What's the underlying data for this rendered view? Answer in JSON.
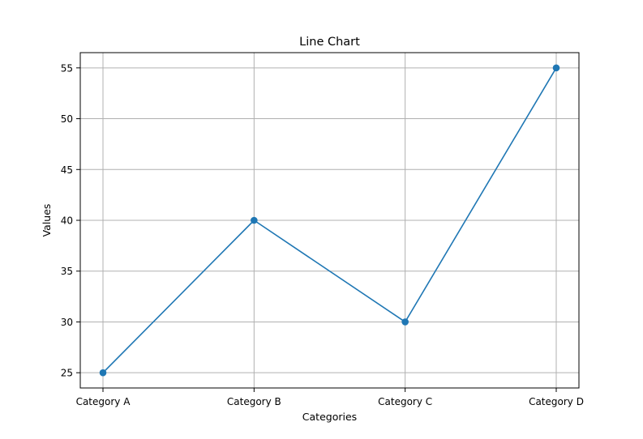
{
  "chart_data": {
    "type": "line",
    "title": "Line Chart",
    "xlabel": "Categories",
    "ylabel": "Values",
    "categories": [
      "Category A",
      "Category B",
      "Category C",
      "Category D"
    ],
    "series": [
      {
        "values": [
          25,
          40,
          30,
          55
        ],
        "color": "#1f77b4",
        "marker": "circle"
      }
    ],
    "ylim": [
      23.5,
      56.5
    ],
    "yticks": [
      25,
      30,
      35,
      40,
      45,
      50,
      55
    ],
    "grid": true,
    "legend": "none"
  },
  "style": {
    "grid_color": "#b0b0b0",
    "axis_color": "#000000",
    "background": "#ffffff"
  }
}
